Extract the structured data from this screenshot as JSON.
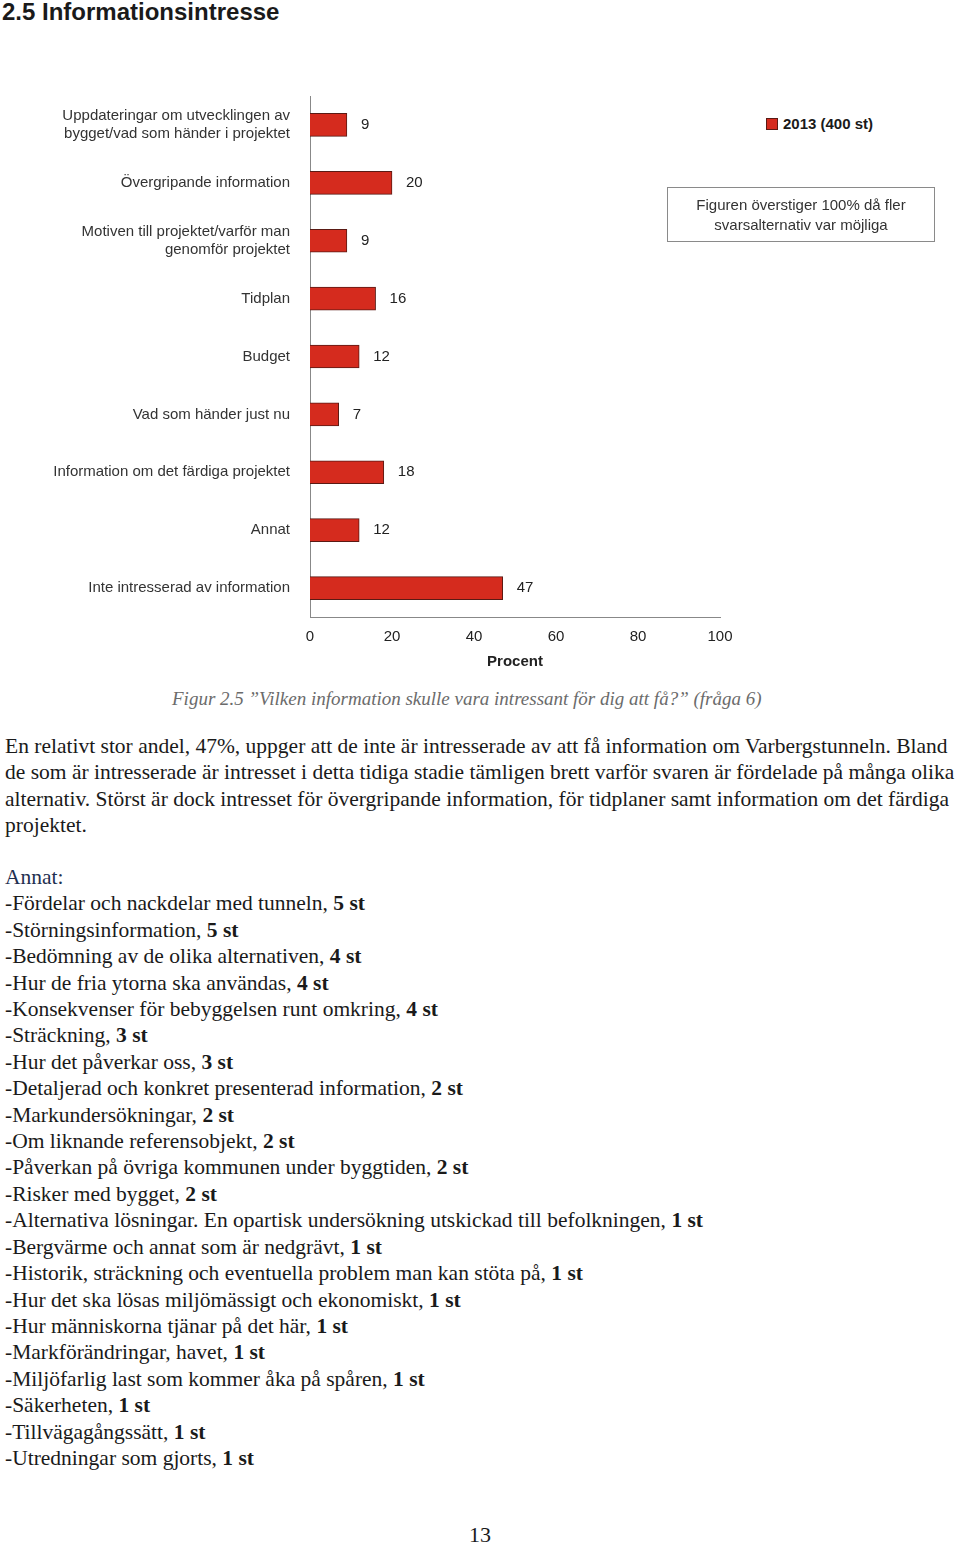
{
  "heading": "2.5 Informationsintresse",
  "chart_data": {
    "type": "bar",
    "orientation": "horizontal",
    "categories": [
      "Uppdateringar om utvecklingen av bygget/vad som händer i projektet",
      "Övergripande information",
      "Motiven till projektet/varför man genomför projektet",
      "Tidplan",
      "Budget",
      "Vad som händer just nu",
      "Information om det färdiga projektet",
      "Annat",
      "Inte intresserad av information"
    ],
    "series": [
      {
        "name": "2013 (400 st)",
        "color": "#d52b1e",
        "values": [
          9,
          20,
          9,
          16,
          12,
          7,
          18,
          12,
          47
        ]
      }
    ],
    "xlim": [
      0,
      100
    ],
    "xticks": [
      0,
      20,
      40,
      60,
      80,
      100
    ],
    "x_label": "Procent",
    "grid": false,
    "data_labels": true,
    "legend": "upper right",
    "annotations": [
      "Figuren överstiger 100% då fler svarsalternativ var möjliga"
    ]
  },
  "caption": "Figur 2.5 ”Vilken information skulle vara intressant för dig att få?” (fråga 6)",
  "paragraph": "En relativt stor andel, 47%, uppger att de inte är intresserade av att få information om Varbergstunneln. Bland de som är intresserade är intresset i detta tidiga stadie tämligen brett varför svaren är fördelade på många olika alternativ. Störst är dock intresset för övergripande information, för tidplaner samt information om det färdiga projektet.",
  "annat": {
    "title": "Annat:",
    "items": [
      {
        "text": "-Fördelar och nackdelar med tunneln,",
        "count": "5 st"
      },
      {
        "text": "-Störningsinformation,",
        "count": "5 st"
      },
      {
        "text": "-Bedömning av de olika alternativen,",
        "count": "4 st"
      },
      {
        "text": "-Hur de fria ytorna ska användas,",
        "count": "4 st"
      },
      {
        "text": "-Konsekvenser för bebyggelsen runt omkring,",
        "count": "4 st"
      },
      {
        "text": "-Sträckning,",
        "count": "3 st"
      },
      {
        "text": "-Hur det påverkar oss,",
        "count": "3 st"
      },
      {
        "text": "-Detaljerad och konkret presenterad information,",
        "count": "2 st"
      },
      {
        "text": "-Markundersökningar,",
        "count": "2 st"
      },
      {
        "text": "-Om liknande referensobjekt,",
        "count": "2 st"
      },
      {
        "text": "-Påverkan på övriga kommunen under byggtiden,",
        "count": "2 st"
      },
      {
        "text": "-Risker med bygget,",
        "count": "2 st"
      },
      {
        "text": "-Alternativa lösningar. En opartisk undersökning utskickad till befolkningen,",
        "count": "1 st"
      },
      {
        "text": "-Bergvärme och annat som är nedgrävt,",
        "count": "1 st"
      },
      {
        "text": "-Historik, sträckning och eventuella problem man kan stöta på,",
        "count": "1 st"
      },
      {
        "text": "-Hur det ska lösas miljömässigt och ekonomiskt,",
        "count": "1 st"
      },
      {
        "text": "-Hur människorna tjänar på det här,",
        "count": "1 st"
      },
      {
        "text": "-Markförändringar, havet,",
        "count": "1 st"
      },
      {
        "text": "-Miljöfarlig last som kommer åka på spåren,",
        "count": "1 st"
      },
      {
        "text": "-Säkerheten,",
        "count": "1 st"
      },
      {
        "text": "-Tillvägagångssätt,",
        "count": "1 st"
      },
      {
        "text": "-Utredningar som gjorts,",
        "count": "1 st"
      }
    ]
  },
  "page_number": "13"
}
